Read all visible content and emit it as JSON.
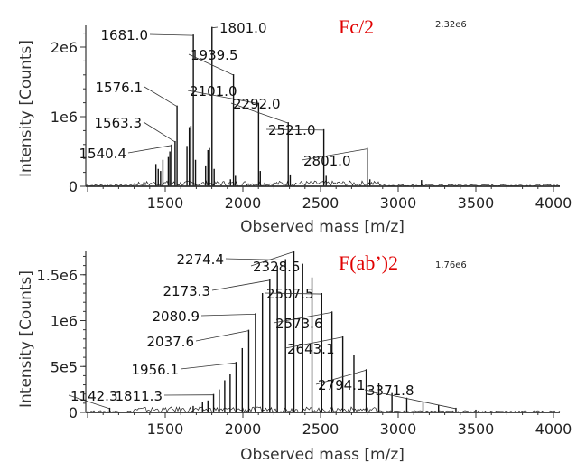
{
  "chart_data": [
    {
      "type": "line",
      "title": "Fc/2",
      "title_color": "#e00000",
      "max_intensity_label": "2.32e6",
      "xlabel": "Observed mass [m/z]",
      "ylabel": "Intensity [Counts]",
      "xlim": [
        1000,
        4040
      ],
      "ylim": [
        0,
        2320000
      ],
      "xticks": [
        1500,
        2000,
        2500,
        3000,
        3500,
        4000
      ],
      "xtick_labels": [
        "1500",
        "2000",
        "2500",
        "3000",
        "3500",
        "4000"
      ],
      "yticks": [
        0,
        1000000,
        2000000
      ],
      "ytick_labels": [
        "0",
        "1e6",
        "2e6"
      ],
      "peaks": [
        {
          "mz": 1440,
          "intensity": 320000
        },
        {
          "mz": 1455,
          "intensity": 250000
        },
        {
          "mz": 1470,
          "intensity": 220000
        },
        {
          "mz": 1485,
          "intensity": 380000
        },
        {
          "mz": 1520,
          "intensity": 420000
        },
        {
          "mz": 1530,
          "intensity": 500000
        },
        {
          "mz": 1540.4,
          "intensity": 600000,
          "label": "1540.4"
        },
        {
          "mz": 1563.3,
          "intensity": 650000,
          "label": "1563.3"
        },
        {
          "mz": 1576.1,
          "intensity": 1160000,
          "label": "1576.1"
        },
        {
          "mz": 1640,
          "intensity": 580000
        },
        {
          "mz": 1655,
          "intensity": 850000
        },
        {
          "mz": 1665,
          "intensity": 870000
        },
        {
          "mz": 1681.0,
          "intensity": 2180000,
          "label": "1681.0"
        },
        {
          "mz": 1695,
          "intensity": 380000
        },
        {
          "mz": 1760,
          "intensity": 300000
        },
        {
          "mz": 1775,
          "intensity": 520000
        },
        {
          "mz": 1785,
          "intensity": 550000
        },
        {
          "mz": 1801.0,
          "intensity": 2290000,
          "label": "1801.0"
        },
        {
          "mz": 1815,
          "intensity": 250000
        },
        {
          "mz": 1920,
          "intensity": 100000
        },
        {
          "mz": 1939.5,
          "intensity": 1610000,
          "label": "1939.5"
        },
        {
          "mz": 1952,
          "intensity": 150000
        },
        {
          "mz": 2101.0,
          "intensity": 1200000,
          "label": "2101.0"
        },
        {
          "mz": 2112,
          "intensity": 220000
        },
        {
          "mz": 2292.0,
          "intensity": 920000,
          "label": "2292.0"
        },
        {
          "mz": 2305,
          "intensity": 170000
        },
        {
          "mz": 2521.0,
          "intensity": 820000,
          "label": "2521.0"
        },
        {
          "mz": 2536,
          "intensity": 150000
        },
        {
          "mz": 2801.0,
          "intensity": 550000,
          "label": "2801.0"
        },
        {
          "mz": 2818,
          "intensity": 100000
        },
        {
          "mz": 3150,
          "intensity": 90000
        }
      ]
    },
    {
      "type": "line",
      "title": "F(ab’)2",
      "title_color": "#e00000",
      "max_intensity_label": "1.76e6",
      "xlabel": "Observed mass [m/z]",
      "ylabel": "Intensity [Counts]",
      "xlim": [
        1000,
        4040
      ],
      "ylim": [
        0,
        1760000
      ],
      "xticks": [
        1500,
        2000,
        2500,
        3000,
        3500,
        4000
      ],
      "xtick_labels": [
        "1500",
        "2000",
        "2500",
        "3000",
        "3500",
        "4000"
      ],
      "yticks": [
        0,
        500000,
        1000000,
        1500000
      ],
      "ytick_labels": [
        "0",
        "5e5",
        "1e6",
        "1.5e6"
      ],
      "peaks": [
        {
          "mz": 1142.3,
          "intensity": 50000,
          "label": "1142.3"
        },
        {
          "mz": 1680,
          "intensity": 70000
        },
        {
          "mz": 1740,
          "intensity": 110000
        },
        {
          "mz": 1775,
          "intensity": 130000
        },
        {
          "mz": 1811.3,
          "intensity": 200000,
          "label": "1811.3"
        },
        {
          "mz": 1848,
          "intensity": 250000
        },
        {
          "mz": 1883,
          "intensity": 350000
        },
        {
          "mz": 1918,
          "intensity": 420000
        },
        {
          "mz": 1956.1,
          "intensity": 550000,
          "label": "1956.1"
        },
        {
          "mz": 1996,
          "intensity": 700000
        },
        {
          "mz": 2037.6,
          "intensity": 900000,
          "label": "2037.6"
        },
        {
          "mz": 2080.9,
          "intensity": 1080000,
          "label": "2080.9"
        },
        {
          "mz": 2126,
          "intensity": 1300000
        },
        {
          "mz": 2173.3,
          "intensity": 1450000,
          "label": "2173.3"
        },
        {
          "mz": 2222,
          "intensity": 1600000
        },
        {
          "mz": 2274.4,
          "intensity": 1670000,
          "label": "2274.4"
        },
        {
          "mz": 2328.5,
          "intensity": 1760000,
          "label": "2328.5"
        },
        {
          "mz": 2385,
          "intensity": 1620000
        },
        {
          "mz": 2445,
          "intensity": 1470000
        },
        {
          "mz": 2507.5,
          "intensity": 1300000,
          "label": "2507.5"
        },
        {
          "mz": 2573.6,
          "intensity": 1100000,
          "label": "2573.6"
        },
        {
          "mz": 2643.1,
          "intensity": 830000,
          "label": "2643.1"
        },
        {
          "mz": 2715,
          "intensity": 630000
        },
        {
          "mz": 2794.1,
          "intensity": 470000,
          "label": "2794.1"
        },
        {
          "mz": 2875,
          "intensity": 320000
        },
        {
          "mz": 2960,
          "intensity": 220000
        },
        {
          "mz": 3055,
          "intensity": 160000
        },
        {
          "mz": 3160,
          "intensity": 120000
        },
        {
          "mz": 3260,
          "intensity": 80000
        },
        {
          "mz": 3371.8,
          "intensity": 50000,
          "label": "3371.8"
        },
        {
          "mz": 3500,
          "intensity": 30000
        }
      ]
    }
  ]
}
